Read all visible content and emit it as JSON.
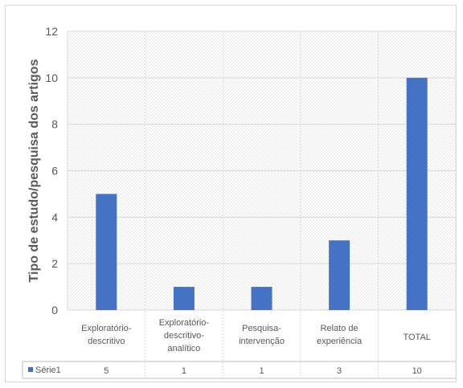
{
  "chart_data": {
    "type": "bar",
    "title": "",
    "xlabel": "",
    "ylabel": "Tipo de estudo/pesquisa dos artigos",
    "ylim": [
      0,
      12
    ],
    "yticks": [
      "0",
      "2",
      "4",
      "6",
      "8",
      "10",
      "12"
    ],
    "grid": true,
    "legend": "data-table",
    "color": "#4472c4",
    "categories": [
      [
        "Exploratório-",
        "descritivo"
      ],
      [
        "Exploratório-",
        "descritivo-",
        "analítico"
      ],
      [
        "Pesquisa-",
        "intervenção"
      ],
      [
        "Relato de",
        "experiência"
      ],
      [
        "TOTAL"
      ]
    ],
    "series": [
      {
        "name": "Série1",
        "values": [
          5,
          1,
          1,
          3,
          10
        ],
        "labels": [
          "5",
          "1",
          "1",
          "3",
          "10"
        ]
      }
    ]
  }
}
